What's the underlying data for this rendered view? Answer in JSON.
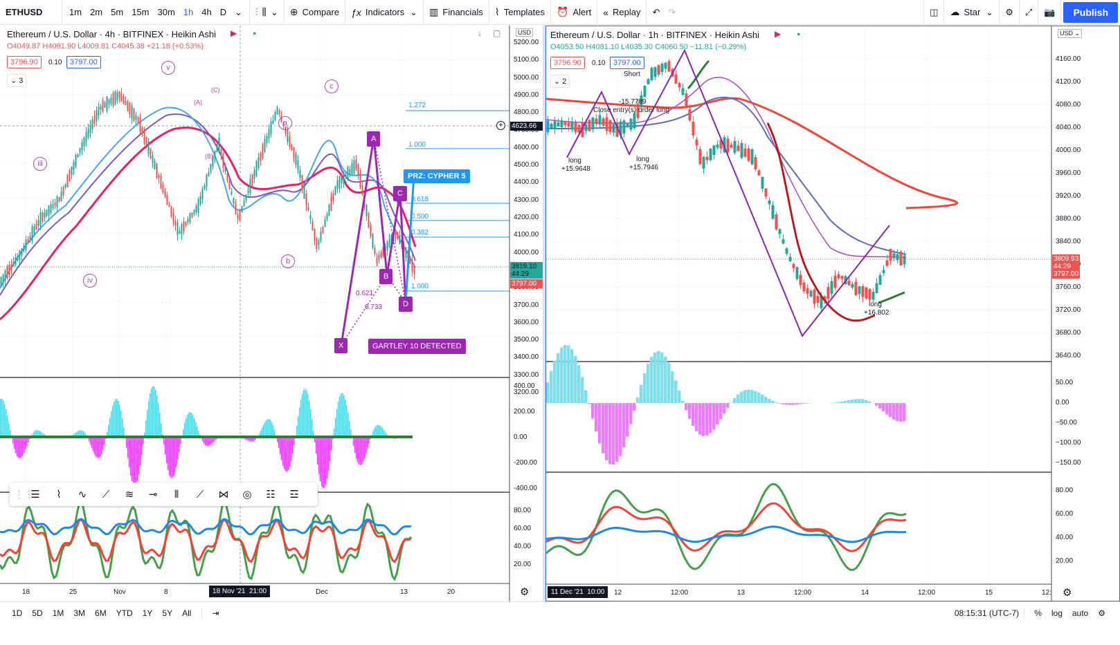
{
  "toolbar": {
    "symbol": "ETHUSD",
    "intervals": [
      "1m",
      "2m",
      "5m",
      "15m",
      "30m",
      "1h",
      "4h",
      "D"
    ],
    "active_interval": "1h",
    "compare": "Compare",
    "indicators": "Indicators",
    "financials": "Financials",
    "templates": "Templates",
    "alert": "Alert",
    "replay": "Replay",
    "star": "Star",
    "publish": "Publish"
  },
  "left_chart": {
    "title": "Ethereum / U.S. Dollar · 4h · BITFINEX · Heikin Ashi",
    "o": "O4049.87",
    "h": "H4091.90",
    "l": "L4009.81",
    "c": "C4045.38",
    "chg": "+21.18 (+0.53%)",
    "bid": "3796.90",
    "spread": "0.10",
    "ask": "3797.00",
    "indicator_count": "3",
    "price_axis": [
      "5200.00",
      "5100.00",
      "5000.00",
      "4900.00",
      "4800.00",
      "4700.00",
      "4600.00",
      "4500.00",
      "4400.00",
      "4300.00",
      "4200.00",
      "4100.00",
      "4000.00",
      "3900.00",
      "3800.00",
      "3700.00",
      "3600.00",
      "3500.00",
      "3400.00",
      "3300.00",
      "3200.00"
    ],
    "currency": "USD",
    "crosshair_price": "4623.66",
    "last_price": "3819.10",
    "countdown": "44:29",
    "ask_tag": "3797.00",
    "osc_axis": [
      "400.00",
      "200.00",
      "0.00",
      "-200.00",
      "-400.00"
    ],
    "rsi_axis": [
      "80.00",
      "60.00",
      "40.00",
      "20.00"
    ],
    "time_axis": [
      "18",
      "25",
      "Nov",
      "8",
      "18 Nov '21  21:00",
      "Dec",
      "13",
      "20"
    ],
    "fib": [
      "1.272",
      "1.000",
      "0.618",
      "0.500",
      "0.382",
      "1.000"
    ],
    "prz": "PRZ: CYPHER 5",
    "gartley": "GARTLEY 10 DETECTED",
    "pattern_points": [
      "X",
      "A",
      "B",
      "C",
      "D"
    ],
    "pattern_ratios": [
      "0.621",
      "0.733"
    ],
    "waves": [
      "iii",
      "iv",
      "v",
      "a",
      "b",
      "c",
      "(C)",
      "(A)",
      "(B)"
    ]
  },
  "right_chart": {
    "title": "Ethereum / U.S. Dollar · 1h · BITFINEX · Heikin Ashi",
    "o": "O4053.50",
    "h": "H4081.10",
    "l": "L4035.30",
    "c": "C4060.50",
    "chg": "−11.81 (−0.29%)",
    "bid": "3796.90",
    "spread": "0.10",
    "ask": "3797.00",
    "indicator_count": "2",
    "currency": "USD",
    "price_axis": [
      "4160.00",
      "4120.00",
      "4080.00",
      "4040.00",
      "4000.00",
      "3960.00",
      "3920.00",
      "3880.00",
      "3840.00",
      "3800.00",
      "3760.00",
      "3720.00",
      "3680.00",
      "3640.00"
    ],
    "last_price": "3809.93",
    "countdown": "44:29",
    "ask_tag": "3797.00",
    "osc_axis": [
      "50.00",
      "0.00",
      "−50.00",
      "−100.00",
      "−150.00"
    ],
    "rsi_axis": [
      "80.00",
      "60.00",
      "40.00",
      "20.00"
    ],
    "time_axis": [
      "11 Dec '21  10:00",
      "12",
      "12:00",
      "13",
      "12:00",
      "14",
      "12:00",
      "15",
      "12:"
    ],
    "annotations": [
      "Short",
      "-15.7789",
      "Close entry(s) order long",
      "long",
      "+15.9648",
      "long",
      "+15.7946",
      "long",
      "+16.802"
    ]
  },
  "bottom": {
    "ranges": [
      "1D",
      "5D",
      "1M",
      "3M",
      "6M",
      "YTD",
      "1Y",
      "5Y",
      "All"
    ],
    "time": "08:15:31 (UTC-7)",
    "percent": "%",
    "log": "log",
    "auto": "auto"
  }
}
